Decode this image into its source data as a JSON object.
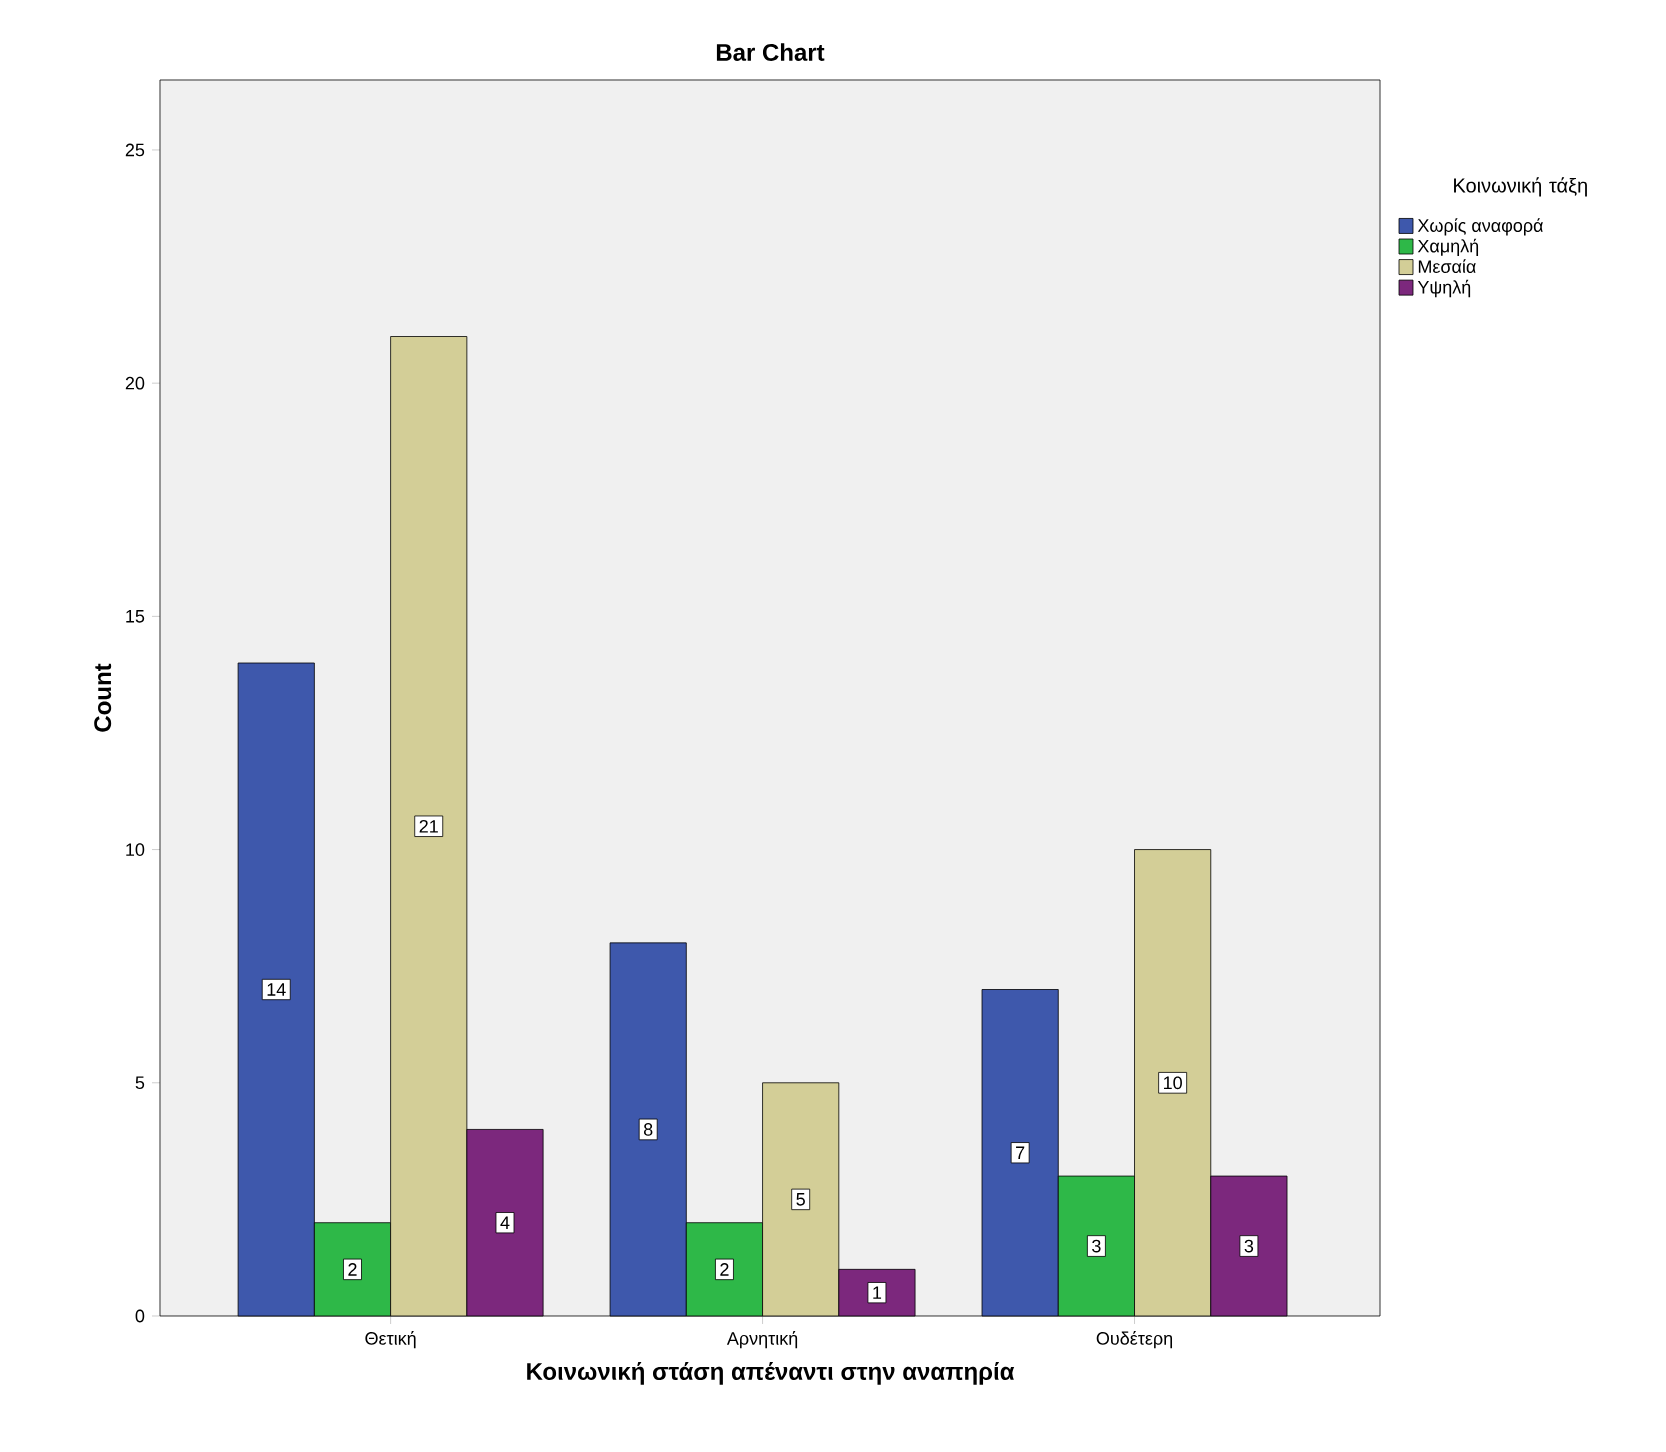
{
  "chart_data": {
    "type": "bar",
    "title": "Bar Chart",
    "xlabel": "Κοινωνική στάση απέναντι στην αναπηρία",
    "ylabel": "Count",
    "legend_title": "Κοινωνική τάξη",
    "categories": [
      "Θετική",
      "Αρνητική",
      "Ουδέτερη"
    ],
    "series": [
      {
        "name": "Χωρίς αναφορά",
        "color": "#3e58ac",
        "values": [
          14,
          8,
          7
        ]
      },
      {
        "name": "Χαμηλή",
        "color": "#2eb848",
        "values": [
          2,
          2,
          3
        ]
      },
      {
        "name": "Μεσαία",
        "color": "#d3ce97",
        "values": [
          21,
          5,
          10
        ]
      },
      {
        "name": "Υψηλή",
        "color": "#7c287d",
        "values": [
          4,
          1,
          3
        ]
      }
    ],
    "ylim": [
      0,
      26.5
    ],
    "yticks": [
      0,
      5,
      10,
      15,
      20,
      25
    ],
    "legend": "right",
    "data_labels": true
  }
}
